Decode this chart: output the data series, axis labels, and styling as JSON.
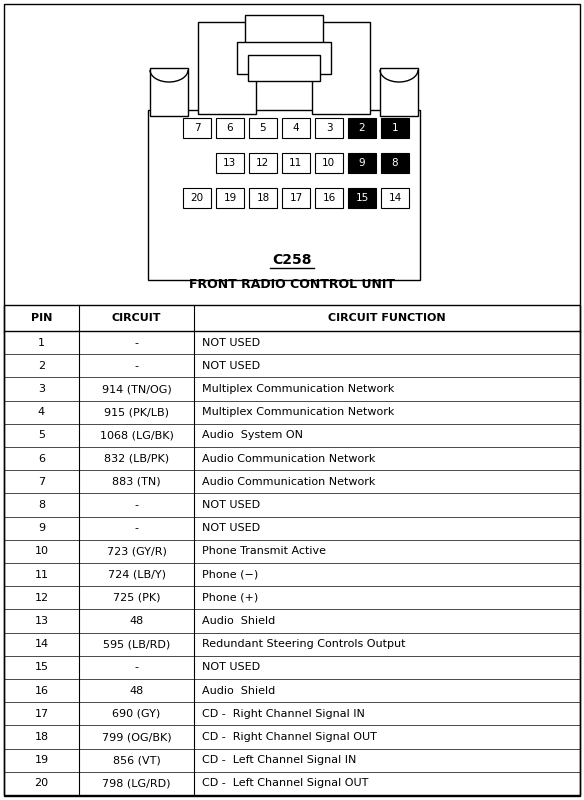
{
  "title": "C258",
  "subtitle": "FRONT RADIO CONTROL UNIT",
  "col_headers": [
    "PIN",
    "CIRCUIT",
    "CIRCUIT FUNCTION"
  ],
  "rows": [
    [
      "1",
      "-",
      "NOT USED"
    ],
    [
      "2",
      "-",
      "NOT USED"
    ],
    [
      "3",
      "914 (TN/OG)",
      "Multiplex Communication Network"
    ],
    [
      "4",
      "915 (PK/LB)",
      "Multiplex Communication Network"
    ],
    [
      "5",
      "1068 (LG/BK)",
      "Audio  System ON"
    ],
    [
      "6",
      "832 (LB/PK)",
      "Audio Communication Network"
    ],
    [
      "7",
      "883 (TN)",
      "Audio Communication Network"
    ],
    [
      "8",
      "-",
      "NOT USED"
    ],
    [
      "9",
      "-",
      "NOT USED"
    ],
    [
      "10",
      "723 (GY/R)",
      "Phone Transmit Active"
    ],
    [
      "11",
      "724 (LB/Y)",
      "Phone (−)"
    ],
    [
      "12",
      "725 (PK)",
      "Phone (+)"
    ],
    [
      "13",
      "48",
      "Audio  Shield"
    ],
    [
      "14",
      "595 (LB/RD)",
      "Redundant Steering Controls Output"
    ],
    [
      "15",
      "-",
      "NOT USED"
    ],
    [
      "16",
      "48",
      "Audio  Shield"
    ],
    [
      "17",
      "690 (GY)",
      "CD -  Right Channel Signal IN"
    ],
    [
      "18",
      "799 (OG/BK)",
      "CD -  Right Channel Signal OUT"
    ],
    [
      "19",
      "856 (VT)",
      "CD -  Left Channel Signal IN"
    ],
    [
      "20",
      "798 (LG/RD)",
      "CD -  Left Channel Signal OUT"
    ]
  ],
  "row1_pins": [
    7,
    6,
    5,
    4,
    3,
    2,
    1
  ],
  "row1_black": [
    2,
    1
  ],
  "row2_pins": [
    13,
    12,
    11,
    10,
    9,
    8
  ],
  "row2_black": [
    9,
    8
  ],
  "row3_pins": [
    20,
    19,
    18,
    17,
    16,
    15,
    14
  ],
  "row3_black": [
    15
  ],
  "bg_color": "#ffffff",
  "border_color": "#000000",
  "figw": 5.84,
  "figh": 8.0,
  "dpi": 100
}
